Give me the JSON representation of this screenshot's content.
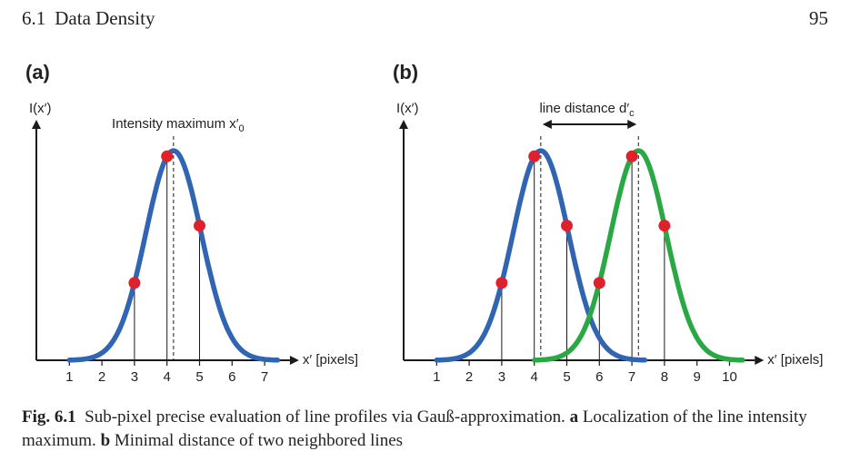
{
  "header": {
    "section_number": "6.1",
    "section_title": "Data Density",
    "page_number": "95"
  },
  "colors": {
    "blue": "#2f65b2",
    "green": "#29a844",
    "point": "#e0202a",
    "axis": "#1a1a1a"
  },
  "chart_data": [
    {
      "type": "line",
      "panel_label": "(a)",
      "ylabel": "I(x′)",
      "xlabel": "x′ [pixels]",
      "xticks": [
        1,
        2,
        3,
        4,
        5,
        6,
        7
      ],
      "xlim": [
        0,
        8
      ],
      "annotation": {
        "text": "Intensity maximum x′",
        "subscript": "0",
        "x": 4.2
      },
      "series": [
        {
          "color": "blue",
          "mean": 4.2,
          "sigma": 0.85,
          "x_range": [
            1,
            7.4
          ]
        }
      ],
      "points": [
        {
          "x": 3,
          "series": 0
        },
        {
          "x": 4,
          "series": 0
        },
        {
          "x": 5,
          "series": 0
        }
      ]
    },
    {
      "type": "line",
      "panel_label": "(b)",
      "ylabel": "I(x′)",
      "xlabel": "x′ [pixels]",
      "xticks": [
        1,
        2,
        3,
        4,
        5,
        6,
        7,
        8,
        9,
        10
      ],
      "xlim": [
        0,
        11
      ],
      "annotation": {
        "text": "line distance d′",
        "subscript": "c",
        "from": 4.2,
        "to": 7.2
      },
      "series": [
        {
          "color": "blue",
          "mean": 4.2,
          "sigma": 0.85,
          "x_range": [
            1,
            7.4
          ]
        },
        {
          "color": "green",
          "mean": 7.2,
          "sigma": 0.85,
          "x_range": [
            4,
            10.4
          ]
        }
      ],
      "points": [
        {
          "x": 3,
          "series": 0
        },
        {
          "x": 4,
          "series": 0
        },
        {
          "x": 5,
          "series": 0
        },
        {
          "x": 6,
          "series": 1
        },
        {
          "x": 7,
          "series": 1
        },
        {
          "x": 8,
          "series": 1
        }
      ]
    }
  ],
  "caption": {
    "prefix": "Fig. 6.1",
    "text1": "Sub-pixel precise evaluation of line profiles via Gauß-approximation.",
    "label_a": "a",
    "text_a": "Localization of the line intensity maximum.",
    "label_b": "b",
    "text_b": "Minimal distance of two neighbored lines"
  }
}
